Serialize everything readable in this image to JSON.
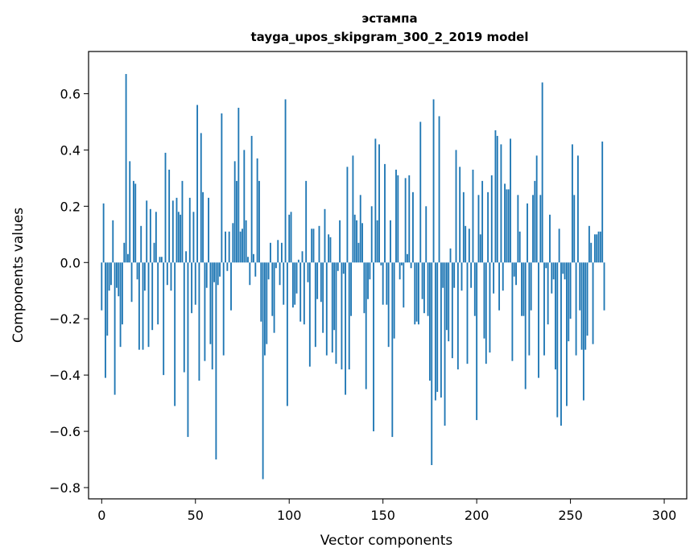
{
  "chart_data": {
    "type": "bar",
    "title": "эстампа",
    "subtitle": "tayga_upos_skipgram_300_2_2019 model",
    "xlabel": "Vector components",
    "ylabel": "Components values",
    "xlim": [
      -7,
      312
    ],
    "ylim": [
      -0.84,
      0.75
    ],
    "x_ticks": [
      0,
      50,
      100,
      150,
      200,
      250,
      300
    ],
    "x_tick_labels": [
      "0",
      "50",
      "100",
      "150",
      "200",
      "250",
      "300"
    ],
    "y_ticks": [
      -0.8,
      -0.6,
      -0.4,
      -0.2,
      0.0,
      0.2,
      0.4,
      0.6
    ],
    "y_tick_labels": [
      "−0.8",
      "−0.6",
      "−0.4",
      "−0.2",
      "0.0",
      "0.2",
      "0.4",
      "0.6"
    ],
    "bar_color": "#1f77b4",
    "values": [
      -0.17,
      0.21,
      -0.41,
      -0.26,
      -0.1,
      -0.08,
      0.15,
      -0.47,
      -0.09,
      -0.12,
      -0.3,
      -0.22,
      0.07,
      0.67,
      0.03,
      0.36,
      -0.14,
      0.29,
      0.28,
      -0.06,
      -0.31,
      0.13,
      -0.31,
      -0.1,
      0.22,
      -0.3,
      0.19,
      -0.24,
      0.07,
      0.18,
      -0.22,
      0.02,
      0.02,
      -0.4,
      0.39,
      -0.08,
      0.33,
      -0.1,
      0.22,
      -0.51,
      0.23,
      0.18,
      0.17,
      0.29,
      -0.39,
      0.04,
      -0.62,
      0.23,
      -0.18,
      0.18,
      -0.15,
      0.56,
      -0.42,
      0.46,
      0.25,
      -0.35,
      -0.09,
      0.23,
      -0.29,
      -0.38,
      -0.07,
      -0.7,
      -0.08,
      -0.05,
      0.53,
      -0.33,
      0.11,
      -0.03,
      0.11,
      -0.17,
      0.14,
      0.36,
      0.29,
      0.55,
      0.11,
      0.12,
      0.4,
      0.15,
      0.02,
      -0.08,
      0.45,
      0.03,
      -0.05,
      0.37,
      0.29,
      -0.21,
      -0.77,
      -0.33,
      -0.29,
      -0.06,
      0.07,
      -0.19,
      -0.25,
      -0.02,
      0.08,
      -0.08,
      0.07,
      -0.15,
      0.58,
      -0.51,
      0.17,
      0.18,
      -0.16,
      -0.15,
      -0.11,
      0.01,
      -0.21,
      0.04,
      -0.22,
      0.29,
      -0.07,
      -0.37,
      0.12,
      0.12,
      -0.3,
      -0.13,
      0.13,
      -0.14,
      -0.25,
      0.19,
      -0.33,
      0.1,
      0.09,
      -0.32,
      -0.24,
      -0.36,
      -0.03,
      0.15,
      -0.38,
      -0.04,
      -0.47,
      0.34,
      -0.38,
      -0.19,
      0.38,
      0.17,
      0.15,
      0.07,
      0.24,
      0.14,
      -0.18,
      -0.45,
      -0.13,
      -0.06,
      0.2,
      -0.6,
      0.44,
      0.15,
      0.42,
      -0.01,
      -0.15,
      0.35,
      -0.15,
      -0.3,
      0.15,
      -0.62,
      -0.27,
      0.33,
      0.31,
      -0.06,
      -0.01,
      -0.16,
      0.3,
      0.03,
      0.31,
      -0.02,
      0.25,
      -0.22,
      -0.21,
      -0.22,
      0.5,
      -0.13,
      -0.18,
      0.2,
      -0.19,
      -0.42,
      -0.72,
      0.58,
      -0.49,
      -0.46,
      0.52,
      -0.48,
      -0.09,
      -0.58,
      -0.24,
      -0.28,
      0.05,
      -0.34,
      -0.09,
      0.4,
      -0.38,
      0.34,
      -0.1,
      0.25,
      0.13,
      -0.36,
      0.12,
      -0.09,
      0.33,
      -0.19,
      -0.56,
      0.24,
      0.1,
      0.29,
      -0.27,
      -0.36,
      0.25,
      -0.32,
      0.31,
      -0.11,
      0.47,
      0.45,
      -0.17,
      0.42,
      -0.1,
      0.28,
      0.26,
      0.26,
      0.44,
      -0.35,
      -0.05,
      -0.08,
      0.24,
      0.11,
      -0.19,
      -0.19,
      -0.45,
      0.21,
      -0.33,
      -0.17,
      0.24,
      0.29,
      0.38,
      -0.41,
      0.24,
      0.64,
      -0.33,
      -0.02,
      -0.22,
      0.17,
      -0.11,
      -0.06,
      -0.38,
      -0.55,
      0.12,
      -0.58,
      -0.04,
      -0.06,
      -0.51,
      -0.28,
      -0.2,
      0.42,
      0.24,
      -0.33,
      0.38,
      -0.17,
      -0.31,
      -0.49,
      -0.31,
      -0.26,
      0.13,
      0.07,
      -0.29,
      0.1,
      0.1,
      0.11,
      0.11,
      0.43,
      -0.17
    ]
  }
}
